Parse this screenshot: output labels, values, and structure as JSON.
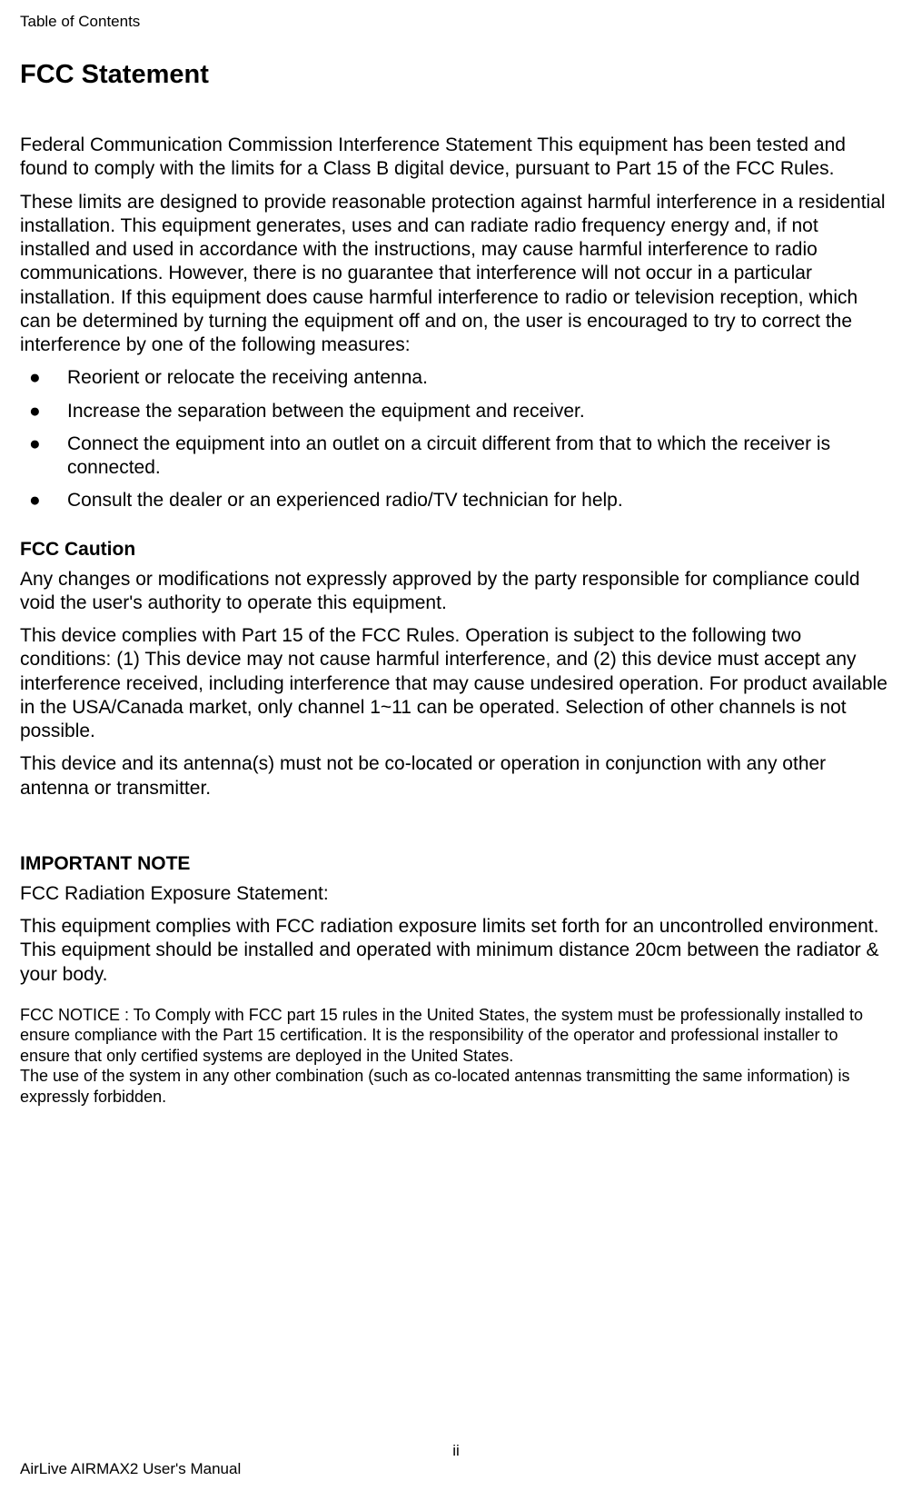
{
  "header": {
    "label": "Table of Contents"
  },
  "title": "FCC Statement",
  "paragraphs": {
    "p1": "Federal Communication Commission Interference Statement This equipment has been tested and found to comply with the limits for a Class B digital device, pursuant to Part 15 of the FCC Rules.",
    "p2": "These limits are designed to provide reasonable protection against harmful interference in a residential installation. This equipment generates, uses and can radiate radio frequency energy and, if not installed and used in accordance with the instructions, may cause harmful interference to radio communications. However, there is no guarantee that interference will not occur in a particular installation. If this equipment does cause harmful interference to radio or television reception, which can be determined by turning the equipment off and on, the user is encouraged to try to correct the interference by one of the following measures:"
  },
  "bullets": [
    "Reorient or relocate the receiving antenna.",
    "Increase the separation between the equipment and receiver.",
    "Connect the equipment into an outlet on a circuit different from that to which the receiver is connected.",
    "Consult the dealer or an experienced radio/TV technician for help."
  ],
  "caution": {
    "heading": "FCC Caution",
    "p1": "Any changes or modifications not expressly approved by the party responsible for compliance could void the user's authority to operate this equipment.",
    "p2": "This device complies with Part 15 of the FCC Rules. Operation is subject to the following two conditions: (1) This device may not cause harmful interference, and (2) this device must accept any interference received, including interference that may cause undesired operation. For product available in the USA/Canada market, only channel 1~11 can be operated. Selection of other channels is not possible.",
    "p3": "This device and its antenna(s) must not be co-located or operation in conjunction with any other antenna or transmitter."
  },
  "important": {
    "heading": "IMPORTANT NOTE",
    "p1": "FCC Radiation Exposure Statement:",
    "p2": "This equipment complies with FCC radiation exposure limits set forth for an uncontrolled environment. This equipment should be installed and operated with minimum distance 20cm between the radiator & your body."
  },
  "notice": "FCC NOTICE : To Comply with FCC part 15 rules in the United States, the system must be professionally installed to ensure compliance with the Part 15 certification. It is the responsibility of the operator and professional installer to ensure that only certified systems are deployed in the United States.\nThe use of the system in any other combination (such as co-located antennas transmitting the same information) is expressly forbidden.",
  "footer": {
    "page_number": "ii",
    "footer_text": "AirLive AIRMAX2      User's Manual"
  },
  "style": {
    "body_font_size_pt": 16,
    "heading_font_size_pt": 22,
    "notice_font_size_pt": 14,
    "text_color": "#000000",
    "background_color": "#ffffff",
    "bullet_glyph": "●"
  }
}
